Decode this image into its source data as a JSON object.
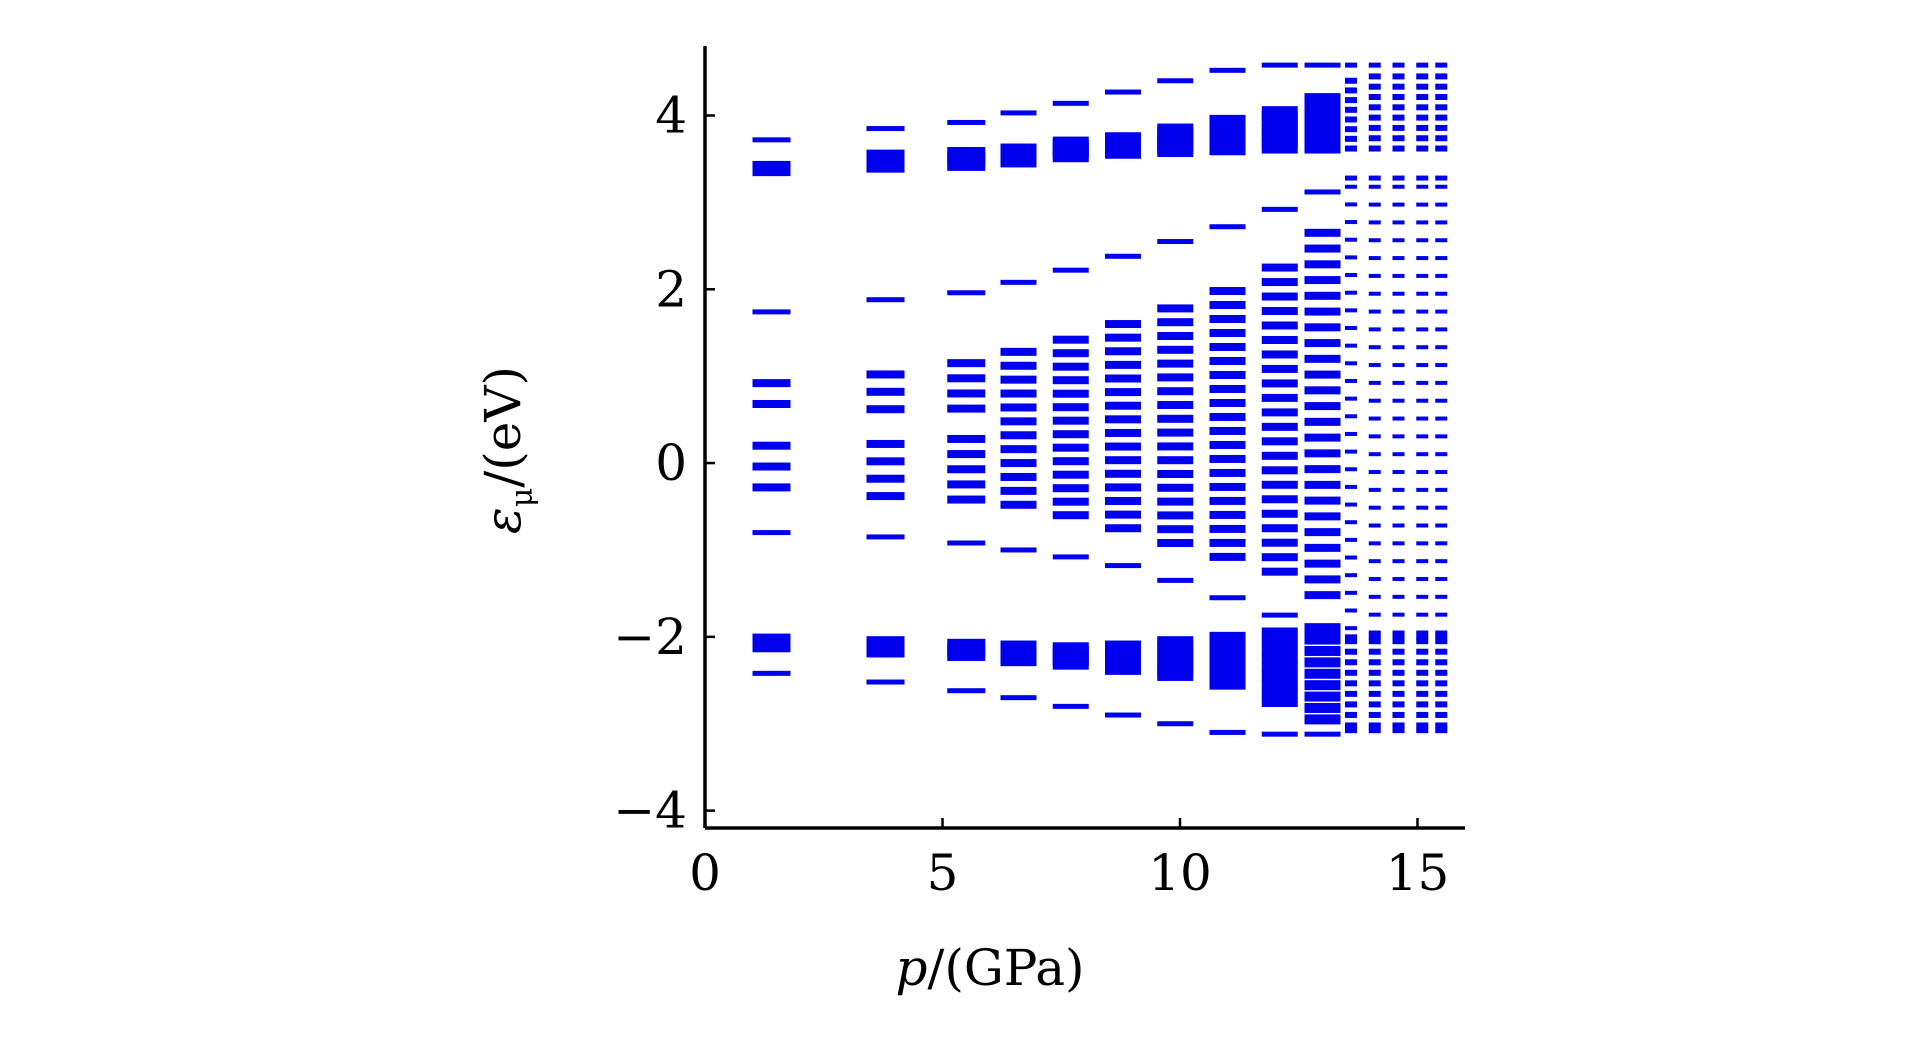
{
  "chart_data": {
    "type": "scatter",
    "marker": "horizontal-dash",
    "color": "#0000ee",
    "xlabel": "p/(GPa)",
    "ylabel": "εμ/(eV)",
    "ylabel_main": "ε",
    "ylabel_sub": "μ",
    "ylabel_rest": "/(eV)",
    "xlabel_var": "p",
    "xlabel_rest": "/(GPa)",
    "xlim": [
      0,
      16
    ],
    "ylim": [
      -4.2,
      4.8
    ],
    "x_ticks": [
      0,
      5,
      10,
      15
    ],
    "x_tick_labels": [
      "0",
      "5",
      "10",
      "15"
    ],
    "y_ticks": [
      -4,
      -2,
      0,
      2,
      4
    ],
    "y_tick_labels": [
      "−4",
      "−2",
      "0",
      "2",
      "4"
    ],
    "pressures": [
      1.4,
      3.8,
      5.5,
      6.6,
      7.7,
      8.8,
      9.9,
      11.0,
      12.1,
      13.0,
      13.6,
      14.1,
      14.6,
      15.1,
      15.5
    ],
    "band_edges": {
      "upper_top": [
        3.72,
        3.85,
        3.92,
        4.03,
        4.14,
        4.27,
        4.4,
        4.52,
        4.58,
        4.58,
        4.58,
        4.58,
        4.58,
        4.58,
        4.58
      ],
      "upper_cluster_hi": [
        3.42,
        3.55,
        3.58,
        3.62,
        3.7,
        3.75,
        3.85,
        3.95,
        4.05,
        4.2,
        4.4,
        4.45,
        4.45,
        4.45,
        4.45
      ],
      "upper_cluster_lo": [
        3.36,
        3.4,
        3.42,
        3.46,
        3.52,
        3.56,
        3.58,
        3.6,
        3.62,
        3.62,
        3.62,
        3.62,
        3.62,
        3.62,
        3.62
      ],
      "mid_top": [
        1.74,
        1.88,
        1.96,
        2.08,
        2.22,
        2.38,
        2.55,
        2.72,
        2.92,
        3.12,
        3.28,
        3.28,
        3.28,
        3.28,
        3.28
      ],
      "mid_hi": [
        0.92,
        1.02,
        1.15,
        1.28,
        1.42,
        1.6,
        1.78,
        1.98,
        2.25,
        2.65,
        3.18,
        3.18,
        3.18,
        3.18,
        3.18
      ],
      "mid_lo": [
        -0.28,
        -0.38,
        -0.42,
        -0.48,
        -0.6,
        -0.75,
        -0.92,
        -1.08,
        -1.25,
        -1.52,
        -1.9,
        -1.95,
        -1.95,
        -1.95,
        -1.95
      ],
      "mid_bottom": [
        -0.8,
        -0.85,
        -0.92,
        -1.0,
        -1.08,
        -1.18,
        -1.35,
        -1.55,
        -1.75,
        -1.95,
        -2.0,
        -2.0,
        -2.0,
        -2.0,
        -2.0
      ],
      "lower_hi": [
        -2.02,
        -2.05,
        -2.08,
        -2.1,
        -2.12,
        -2.1,
        -2.05,
        -2.0,
        -1.95,
        -1.9,
        -2.05,
        -2.05,
        -2.05,
        -2.05,
        -2.05
      ],
      "lower_lo": [
        -2.12,
        -2.18,
        -2.22,
        -2.28,
        -2.32,
        -2.38,
        -2.45,
        -2.55,
        -2.75,
        -2.95,
        -3.02,
        -3.02,
        -3.02,
        -3.02,
        -3.02
      ],
      "lower_bottom": [
        -2.42,
        -2.52,
        -2.62,
        -2.7,
        -2.8,
        -2.9,
        -3.0,
        -3.1,
        -3.12,
        -3.12,
        -3.08,
        -3.08,
        -3.08,
        -3.08,
        -3.08
      ]
    }
  }
}
